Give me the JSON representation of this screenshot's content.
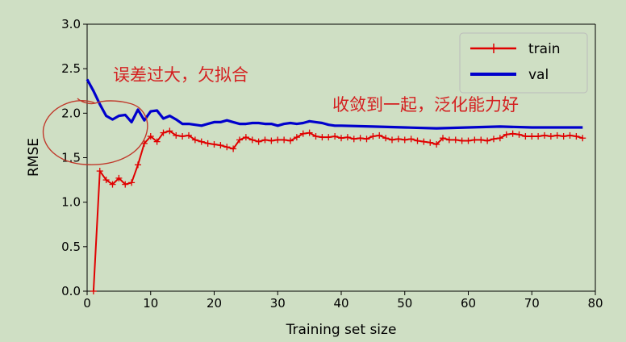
{
  "chart_data": {
    "type": "line",
    "xlabel": "Training set size",
    "ylabel": "RMSE",
    "xlim": [
      0,
      80
    ],
    "ylim": [
      0,
      3.0
    ],
    "xticks": [
      "0",
      "10",
      "20",
      "30",
      "40",
      "50",
      "60",
      "70",
      "80"
    ],
    "yticks": [
      "0.0",
      "0.5",
      "1.0",
      "1.5",
      "2.0",
      "2.5",
      "3.0"
    ],
    "grid": false,
    "legend_position": "top-right",
    "series": [
      {
        "name": "train",
        "color": "#e00000",
        "marker": "plus",
        "x": [
          1,
          2,
          3,
          4,
          5,
          6,
          7,
          8,
          9,
          10,
          11,
          12,
          13,
          14,
          15,
          16,
          17,
          18,
          19,
          20,
          21,
          22,
          23,
          24,
          25,
          26,
          27,
          28,
          29,
          30,
          31,
          32,
          33,
          34,
          35,
          36,
          37,
          38,
          39,
          40,
          41,
          42,
          43,
          44,
          45,
          46,
          47,
          48,
          49,
          50,
          51,
          52,
          53,
          54,
          55,
          56,
          57,
          58,
          59,
          60,
          61,
          62,
          63,
          64,
          65,
          66,
          67,
          68,
          69,
          70,
          71,
          72,
          73,
          74,
          75,
          76,
          77,
          78
        ],
        "values": [
          0.0,
          1.35,
          1.25,
          1.2,
          1.27,
          1.2,
          1.22,
          1.42,
          1.66,
          1.74,
          1.68,
          1.78,
          1.8,
          1.75,
          1.74,
          1.75,
          1.7,
          1.68,
          1.66,
          1.65,
          1.64,
          1.62,
          1.6,
          1.7,
          1.73,
          1.7,
          1.68,
          1.7,
          1.69,
          1.7,
          1.7,
          1.69,
          1.73,
          1.77,
          1.78,
          1.74,
          1.73,
          1.73,
          1.74,
          1.72,
          1.73,
          1.71,
          1.72,
          1.71,
          1.74,
          1.75,
          1.72,
          1.7,
          1.71,
          1.7,
          1.71,
          1.69,
          1.68,
          1.67,
          1.65,
          1.72,
          1.7,
          1.7,
          1.69,
          1.69,
          1.7,
          1.7,
          1.69,
          1.71,
          1.72,
          1.76,
          1.77,
          1.76,
          1.74,
          1.74,
          1.74,
          1.75,
          1.74,
          1.75,
          1.74,
          1.75,
          1.74,
          1.72
        ]
      },
      {
        "name": "val",
        "color": "#0000cc",
        "marker": "none",
        "x": [
          0,
          1,
          2,
          3,
          4,
          5,
          6,
          7,
          8,
          9,
          10,
          11,
          12,
          13,
          14,
          15,
          16,
          17,
          18,
          19,
          20,
          21,
          22,
          23,
          24,
          25,
          26,
          27,
          28,
          29,
          30,
          31,
          32,
          33,
          34,
          35,
          36,
          37,
          38,
          39,
          40,
          45,
          50,
          55,
          60,
          65,
          70,
          75,
          78
        ],
        "values": [
          2.38,
          2.25,
          2.1,
          1.97,
          1.93,
          1.97,
          1.98,
          1.9,
          2.04,
          1.92,
          2.02,
          2.03,
          1.94,
          1.97,
          1.93,
          1.88,
          1.88,
          1.87,
          1.86,
          1.88,
          1.9,
          1.9,
          1.92,
          1.9,
          1.88,
          1.88,
          1.89,
          1.89,
          1.88,
          1.88,
          1.86,
          1.88,
          1.89,
          1.88,
          1.89,
          1.91,
          1.9,
          1.89,
          1.87,
          1.86,
          1.86,
          1.85,
          1.84,
          1.83,
          1.84,
          1.85,
          1.84,
          1.84,
          1.84
        ]
      }
    ],
    "annotations": [
      {
        "text": "误差过大，欠拟合"
      },
      {
        "text": "收敛到一起，泛化能力好"
      }
    ]
  },
  "colors": {
    "background": "#cfdfc4",
    "annotation": "#d42020"
  }
}
